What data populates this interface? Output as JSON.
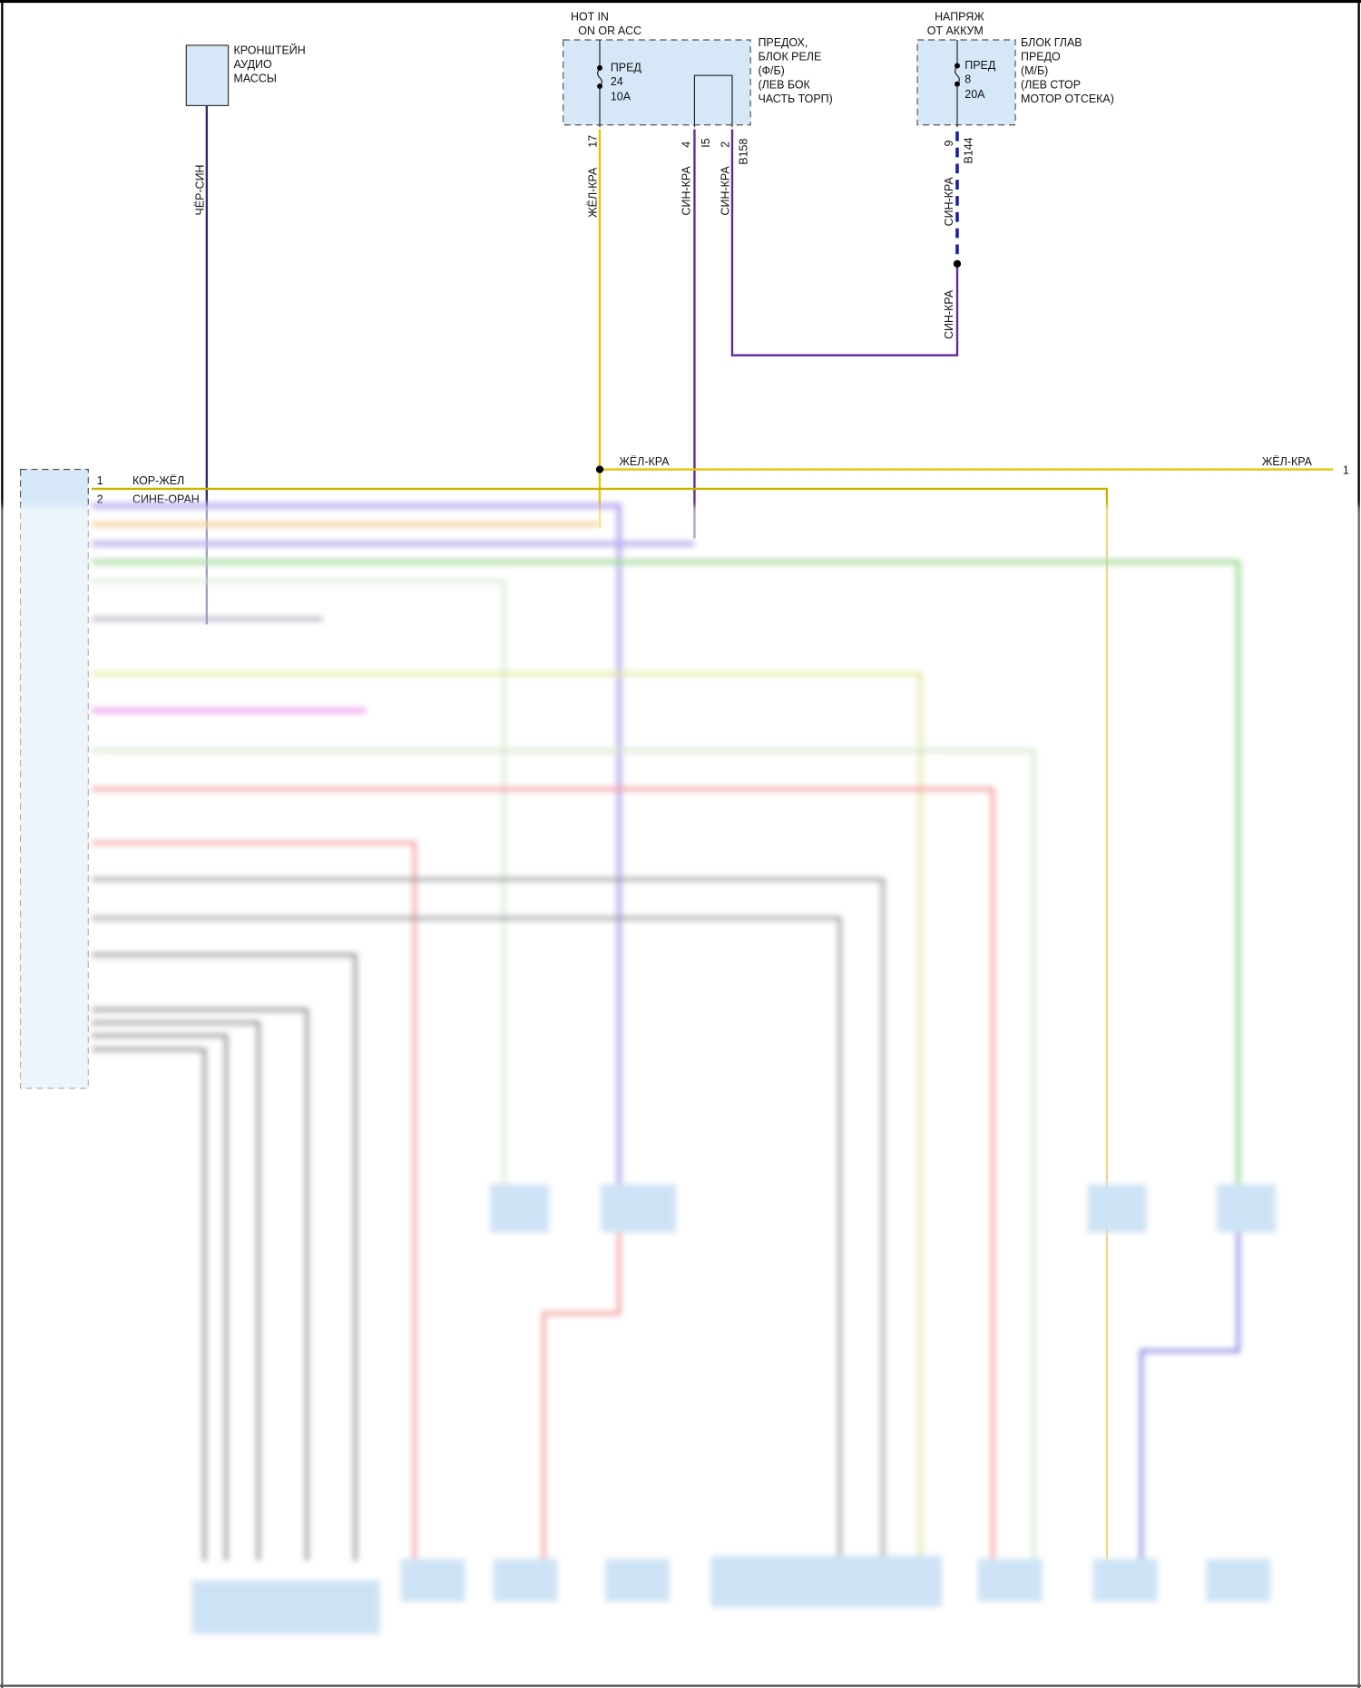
{
  "colors": {
    "component_fill": "#d6e8f7",
    "wire_yellow": "#e8c400",
    "wire_purple": "#5b2a9a",
    "wire_blue_dashed": "#1a1ab0",
    "wire_dark_blue": "#2c2c70",
    "wire_green": "#7ccf6a",
    "wire_pink": "#f06060",
    "wire_gray": "#6a6a6a",
    "wire_magenta": "#f08cf0"
  },
  "ground_bracket": {
    "label_lines": [
      "КРОНШТЕЙН",
      "АУДИО",
      "МАССЫ"
    ],
    "wire_label": "ЧЁР-СИН"
  },
  "fuse_relay_box": {
    "supply_lines": [
      "HOT IN",
      "ON OR ACC"
    ],
    "fuse_lines": [
      "ПРЕД",
      "24",
      "10A"
    ],
    "label_lines": [
      "ПРЕДОХ,",
      "БЛОК РЕЛЕ",
      "(Ф/Б)",
      "(ЛЕВ БОК",
      "ЧАСТЬ ТОРП)"
    ],
    "pins": [
      "17",
      "4",
      "I5",
      "2",
      "B158"
    ],
    "wire_labels": [
      "ЖЁЛ-КРА",
      "СИН-КРА",
      "СИН-КРА"
    ]
  },
  "main_fuse_box": {
    "supply_lines": [
      "НАПРЯЖ",
      "ОТ АККУМ"
    ],
    "fuse_lines": [
      "ПРЕД",
      "8",
      "20A"
    ],
    "label_lines": [
      "БЛОК ГЛАВ",
      "ПРЕДО",
      "(М/Б)",
      "(ЛЕВ СТОР",
      "МОТОР ОТСЕКА)"
    ],
    "pins": [
      "9",
      "B144"
    ],
    "wire_labels": [
      "СИН-КРА",
      "СИН-КРА"
    ]
  },
  "bus": {
    "wire_label_left": "ЖЁЛ-КРА",
    "wire_label_right": "ЖЁЛ-КРА",
    "pin_right": "1"
  },
  "audio_unit": {
    "pins": [
      {
        "number": "1",
        "wire": "КОР-ЖЁЛ"
      },
      {
        "number": "2",
        "wire": "СИНЕ-ОРАН"
      }
    ]
  }
}
